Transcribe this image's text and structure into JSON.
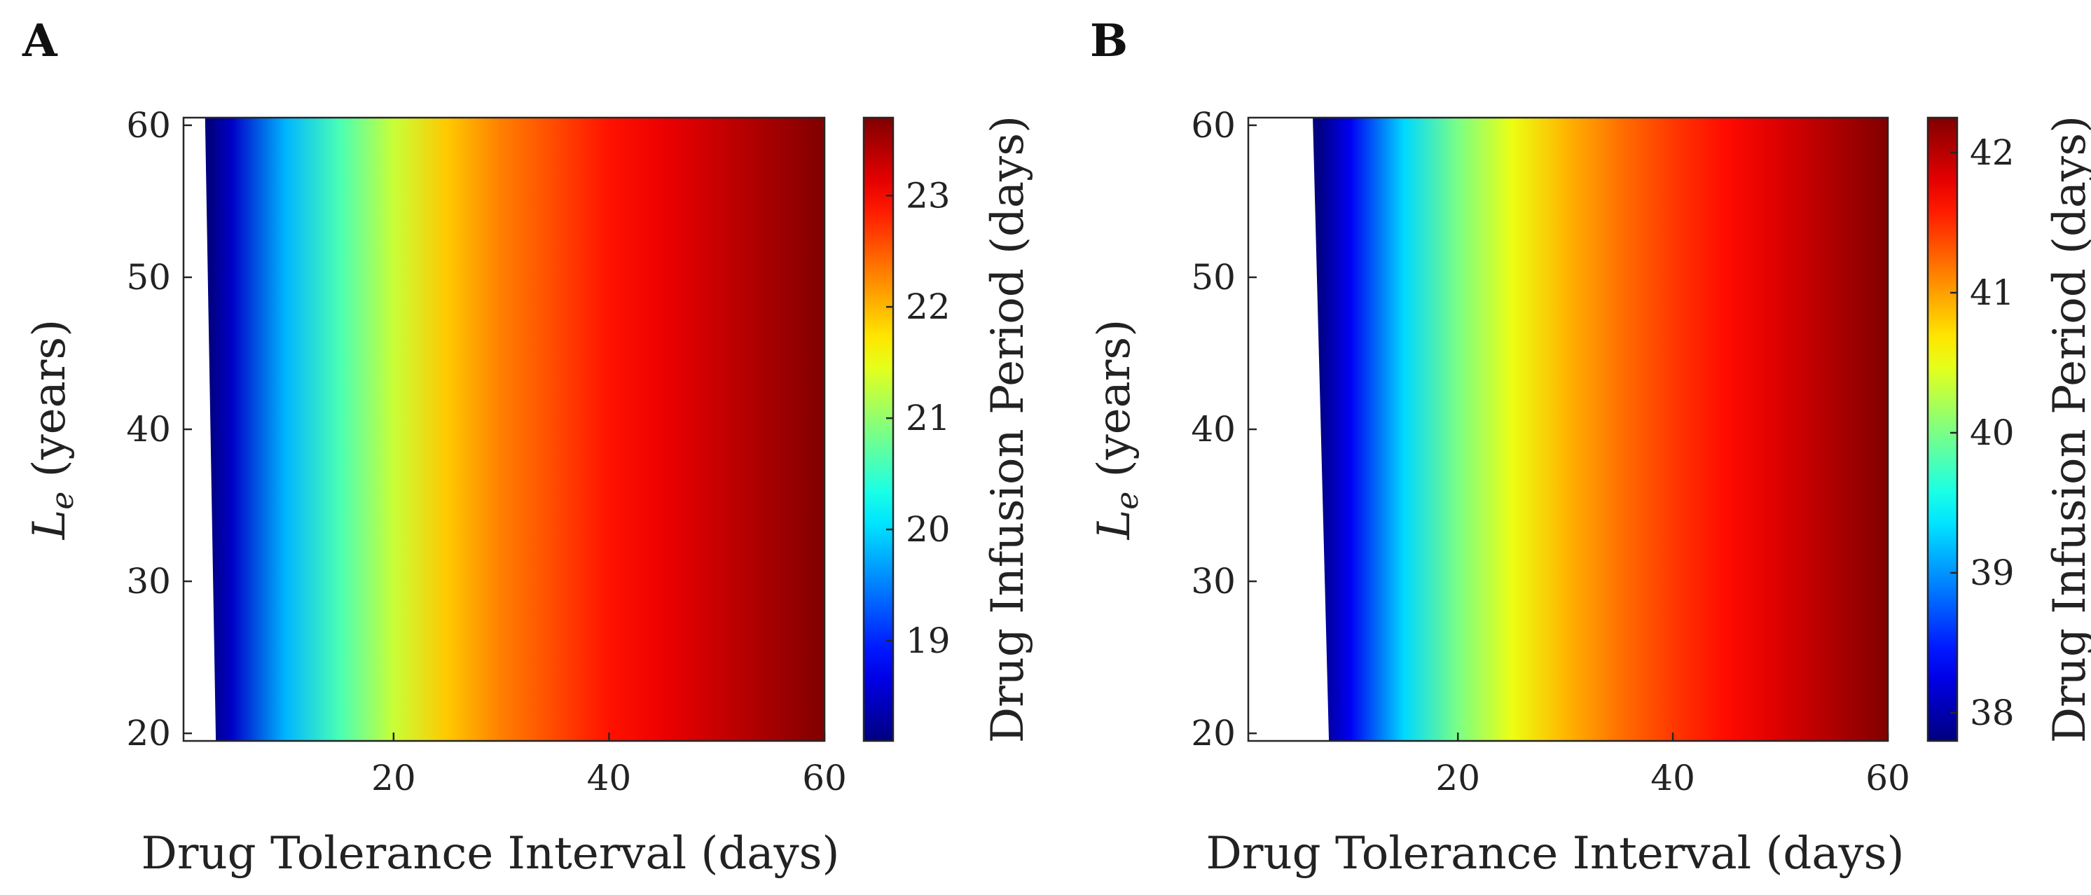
{
  "chart_data": [
    {
      "type": "heatmap",
      "panel_label": "A",
      "xlabel": "Drug Tolerance Interval (days)",
      "ylabel_symbol": "L",
      "ylabel_subscript": "e",
      "ylabel_unit": "(years)",
      "colorbar_label": "Drug Infusion Period (days)",
      "xlim": [
        0.5,
        60
      ],
      "ylim": [
        19.5,
        60.5
      ],
      "x_ticks": [
        20,
        40,
        60
      ],
      "x_tick_labels": [
        "20",
        "40",
        "60"
      ],
      "y_ticks": [
        20,
        30,
        40,
        50,
        60
      ],
      "y_tick_labels": [
        "20",
        "30",
        "40",
        "50",
        "60"
      ],
      "clim": [
        18.1,
        23.7
      ],
      "colorbar_ticks": [
        19,
        20,
        21,
        22,
        23
      ],
      "colorbar_tick_labels": [
        "19",
        "20",
        "21",
        "22",
        "23"
      ],
      "colormap": "jet",
      "undefined_boundary": {
        "x_at_ylow": 3.5,
        "x_at_yhigh": 2.5
      },
      "color_by_x": [
        [
          3,
          18.1
        ],
        [
          5,
          18.5
        ],
        [
          10,
          19.8
        ],
        [
          15,
          20.6
        ],
        [
          20,
          21.3
        ],
        [
          25,
          21.9
        ],
        [
          30,
          22.3
        ],
        [
          35,
          22.6
        ],
        [
          40,
          22.9
        ],
        [
          45,
          23.1
        ],
        [
          50,
          23.3
        ],
        [
          55,
          23.5
        ],
        [
          60,
          23.7
        ]
      ]
    },
    {
      "type": "heatmap",
      "panel_label": "B",
      "xlabel": "Drug Tolerance Interval (days)",
      "ylabel_symbol": "L",
      "ylabel_subscript": "e",
      "ylabel_unit": "(years)",
      "colorbar_label": "Drug Infusion Period (days)",
      "xlim": [
        0.5,
        60
      ],
      "ylim": [
        19.5,
        60.5
      ],
      "x_ticks": [
        20,
        40,
        60
      ],
      "x_tick_labels": [
        "20",
        "40",
        "60"
      ],
      "y_ticks": [
        20,
        30,
        40,
        50,
        60
      ],
      "y_tick_labels": [
        "20",
        "30",
        "40",
        "50",
        "60"
      ],
      "clim": [
        37.8,
        42.25
      ],
      "colorbar_ticks": [
        38,
        39,
        40,
        41,
        42
      ],
      "colorbar_tick_labels": [
        "38",
        "39",
        "40",
        "41",
        "42"
      ],
      "colormap": "jet",
      "undefined_boundary": {
        "x_at_ylow": 8.0,
        "x_at_yhigh": 6.5
      },
      "color_by_x": [
        [
          7,
          37.8
        ],
        [
          10,
          38.3
        ],
        [
          15,
          39.3
        ],
        [
          20,
          40.0
        ],
        [
          25,
          40.5
        ],
        [
          30,
          40.9
        ],
        [
          35,
          41.2
        ],
        [
          40,
          41.45
        ],
        [
          45,
          41.65
        ],
        [
          50,
          41.85
        ],
        [
          55,
          42.05
        ],
        [
          60,
          42.25
        ]
      ]
    }
  ]
}
